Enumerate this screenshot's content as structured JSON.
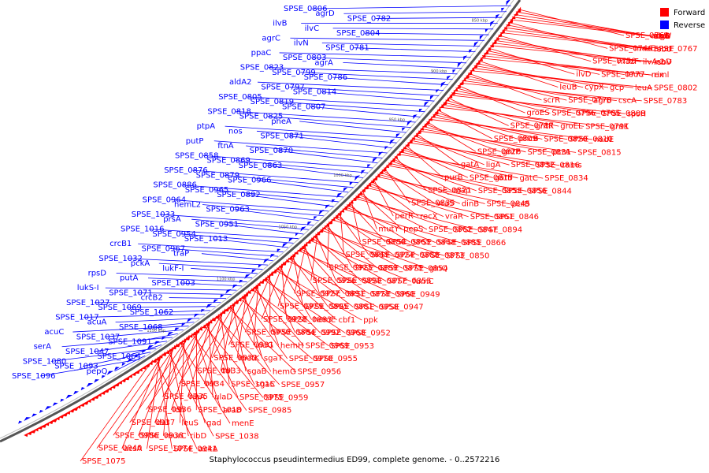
{
  "title": "Staphylococcus pseudintermedius ED99, complete genome. - 0..2572216",
  "legend": [
    {
      "label": "Forward",
      "color": "#ff0000"
    },
    {
      "label": "Reverse",
      "color": "#0000ff"
    }
  ],
  "colors": {
    "forward": "#ff0000",
    "reverse": "#0000ff",
    "backbone": "#555555"
  },
  "ticks": [
    "850 kbp",
    "900 kbp",
    "950 kbp",
    "1000 kbp",
    "1050 kbp",
    "1100 kbp",
    "1150 kbp"
  ],
  "reverse_labels": [
    "SPSE_0806",
    "agrD",
    "SPSE_0782",
    "ilvB",
    "ilvC",
    "SPSE_0804",
    "agrC",
    "ilvN",
    "SPSE_0781",
    "ppaC",
    "SPSE_0803",
    "agrA",
    "SPSE_0823",
    "SPSE_0799",
    "SPSE_0786",
    "aldA2",
    "SPSE_0797",
    "SPSE_0814",
    "SPSE_0805",
    "SPSE_0819",
    "SPSE_0807",
    "SPSE_0818",
    "SPSE_0825",
    "pheA",
    "ptpA",
    "nos",
    "SPSE_0871",
    "putP",
    "ftnA",
    "SPSE_0870",
    "SPSE_0858",
    "SPSE_0869",
    "SPSE_0863",
    "SPSE_0876",
    "SPSE_0879",
    "SPSE_0966",
    "SPSE_0886",
    "SPSE_0965",
    "SPSE_0892",
    "SPSE_0964",
    "hemL2",
    "SPSE_0963",
    "SPSE_1033",
    "prsA",
    "SPSE_0951",
    "SPSE_1016",
    "SPSE_0954",
    "SPSE_1013",
    "crcB1",
    "SPSE_0967",
    "traP",
    "SPSE_1032",
    "pckA",
    "lukF-I",
    "rpsD",
    "putA",
    "SPSE_1003",
    "lukS-I",
    "SPSE_1071",
    "crcB2",
    "SPSE_1027",
    "SPSE_1069",
    "SPSE_1062",
    "SPSE_1017",
    "acuA",
    "SPSE_1068",
    "acuC",
    "SPSE_1037",
    "SPSE_1091",
    "serA",
    "SPSE_1047",
    "SPSE_1064",
    "SPSE_1080",
    "SPSE_1093",
    "pepQ",
    "SPSE_1096"
  ],
  "forward_labels": [
    "SPSE_0761",
    "acpS",
    "ftsW",
    "sigB",
    "alrA",
    "SPSE_0746",
    "mazE",
    "murF",
    "SPSE_0767",
    "rsbU",
    "SPSE_0750",
    "mazF",
    "ilvA-2",
    "leuD",
    "rsbV",
    "ilvD",
    "SPSE_0777",
    "leuC",
    "rex",
    "riml",
    "leuB",
    "cypX",
    "gcp",
    "leuA",
    "SPSE_0802",
    "scrR",
    "SPSE_0778",
    "agrB",
    "cscA",
    "SPSE_0783",
    "groES",
    "SPSE_0796",
    "SPSE_0785",
    "SPSE_0808",
    "spsH",
    "SPSE_0787",
    "gntR",
    "groEL",
    "SPSE_0791",
    "gntK",
    "SPSE_0809",
    "pncB",
    "SPSE_0820",
    "SPSE_0810",
    "nadE",
    "SPSE_0826",
    "gntP",
    "SPSE_0831",
    "pcrA",
    "SPSE_0815",
    "gatA",
    "ligA",
    "SPSE_0832",
    "SPSE_0816",
    "cams",
    "purB",
    "SPSE_0817",
    "gatB",
    "gatC",
    "SPSE_0834",
    "SPSE_0821",
    "map",
    "SPSE_0853",
    "SPSE_0856",
    "SPSE_0844",
    "SPSE_0835",
    "vraS",
    "dinB",
    "SPSE_0845",
    "pcrB",
    "perR",
    "recX",
    "vraR",
    "SPSE_0861",
    "SPSE_0846",
    "mutY",
    "pepS",
    "SPSE_0862",
    "SPSE_0847",
    "SPSE_0894",
    "SPSE_0880",
    "SPSE_0865",
    "SPSE_0848",
    "SPSE_0885",
    "SPSE_0866",
    "SPSE_0849",
    "SPSE_0924",
    "SPSE_0888",
    "SPSE_0873",
    "SPSE_0850",
    "SPSE_0925",
    "SPSE_0889",
    "SPSE_0875",
    "SPSE_0854",
    "glnQ",
    "SPSE_0926",
    "SPSE_0890",
    "SPSE_0877",
    "SPSE_0855",
    "fumC",
    "SPSE_0927",
    "SPSE_0891",
    "SPSE_0878",
    "SPSE_0960",
    "SPSE_0949",
    "SPSE_0929",
    "SPSE_0895",
    "SPSE_0881",
    "SPSE_0958",
    "SPSE_0947",
    "SPSE_0928",
    "SPSE_0883",
    "hemE",
    "cbf1",
    "ppk",
    "SPSE_0930",
    "SPSE_0884",
    "SPSE_0992",
    "SPSE_0968",
    "SPSE_0952",
    "SPSE_0931",
    "ulaG",
    "hemH",
    "SPSE_0969",
    "SPSE_0953",
    "SPSE_0932",
    "metK",
    "sgaT",
    "SPSE_0970",
    "SPSE_0955",
    "SPSE_0933",
    "tal",
    "sgaB",
    "hemG",
    "SPSE_0956",
    "SPSE_0934",
    "rot",
    "SPSE_1015",
    "sgaC",
    "SPSE_0957",
    "SPSE_0935",
    "ribA",
    "ulaD",
    "SPSE_0975",
    "SPSE_0959",
    "SPSE_0936",
    "ldh",
    "SPSE_1018",
    "araD",
    "SPSE_0985",
    "SPSE_0937",
    "dat",
    "leuS",
    "gad",
    "menE",
    "SPSE_0986",
    "SPSE_0938",
    "murC",
    "ribD",
    "SPSE_1038",
    "SPSE_0940",
    "acsA",
    "SPSE_1074",
    "SPSE_0941",
    "ackA",
    "SPSE_1075"
  ]
}
